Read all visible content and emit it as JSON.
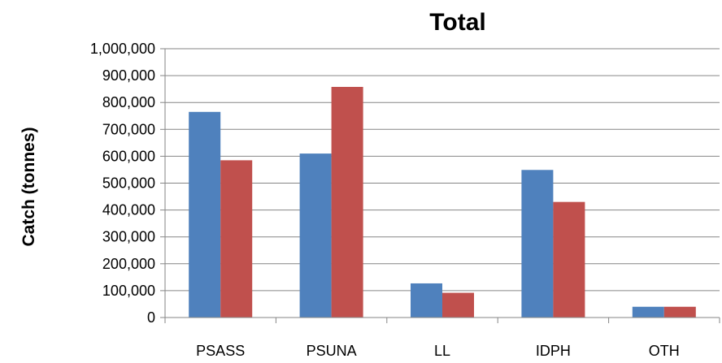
{
  "chart_data": {
    "type": "bar",
    "title": "Total",
    "xlabel": "",
    "ylabel": "Catch (tonnes)",
    "categories": [
      "PSASS",
      "PSUNA",
      "LL",
      "IDPH",
      "OTH"
    ],
    "series": [
      {
        "values": [
          765000,
          610000,
          127000,
          549000,
          40000
        ],
        "color": "#4f81bd"
      },
      {
        "values": [
          585000,
          858000,
          92000,
          430000,
          40000
        ],
        "color": "#c0504d"
      }
    ],
    "ylim": [
      0,
      1000000
    ],
    "yticks": [
      "0",
      "100,000",
      "200,000",
      "300,000",
      "400,000",
      "500,000",
      "600,000",
      "700,000",
      "800,000",
      "900,000",
      "1,000,000"
    ],
    "grid": true,
    "legend": "none"
  }
}
